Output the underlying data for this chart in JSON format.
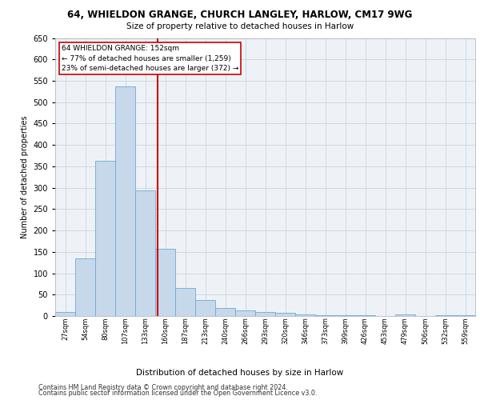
{
  "title_line1": "64, WHIELDON GRANGE, CHURCH LANGLEY, HARLOW, CM17 9WG",
  "title_line2": "Size of property relative to detached houses in Harlow",
  "xlabel": "Distribution of detached houses by size in Harlow",
  "ylabel": "Number of detached properties",
  "footer_line1": "Contains HM Land Registry data © Crown copyright and database right 2024.",
  "footer_line2": "Contains public sector information licensed under the Open Government Licence v3.0.",
  "annotation_line1": "64 WHIELDON GRANGE: 152sqm",
  "annotation_line2": "← 77% of detached houses are smaller (1,259)",
  "annotation_line3": "23% of semi-detached houses are larger (372) →",
  "bar_color": "#c8d8eb",
  "bar_edge_color": "#6aaad4",
  "vline_color": "#cc0000",
  "annotation_box_color": "#cc0000",
  "categories": [
    "27sqm",
    "54sqm",
    "80sqm",
    "107sqm",
    "133sqm",
    "160sqm",
    "187sqm",
    "213sqm",
    "240sqm",
    "266sqm",
    "293sqm",
    "320sqm",
    "346sqm",
    "373sqm",
    "399sqm",
    "426sqm",
    "453sqm",
    "479sqm",
    "506sqm",
    "532sqm",
    "559sqm"
  ],
  "values": [
    10,
    135,
    362,
    537,
    293,
    158,
    66,
    38,
    18,
    14,
    10,
    8,
    3,
    2,
    2,
    1,
    0,
    3,
    0,
    1,
    2
  ],
  "ylim": [
    0,
    650
  ],
  "yticks": [
    0,
    50,
    100,
    150,
    200,
    250,
    300,
    350,
    400,
    450,
    500,
    550,
    600,
    650
  ],
  "vline_x_index": 4.62,
  "background_color": "#eef2f7",
  "grid_color": "#c8d4e0",
  "fig_width": 6.0,
  "fig_height": 5.0,
  "dpi": 100
}
